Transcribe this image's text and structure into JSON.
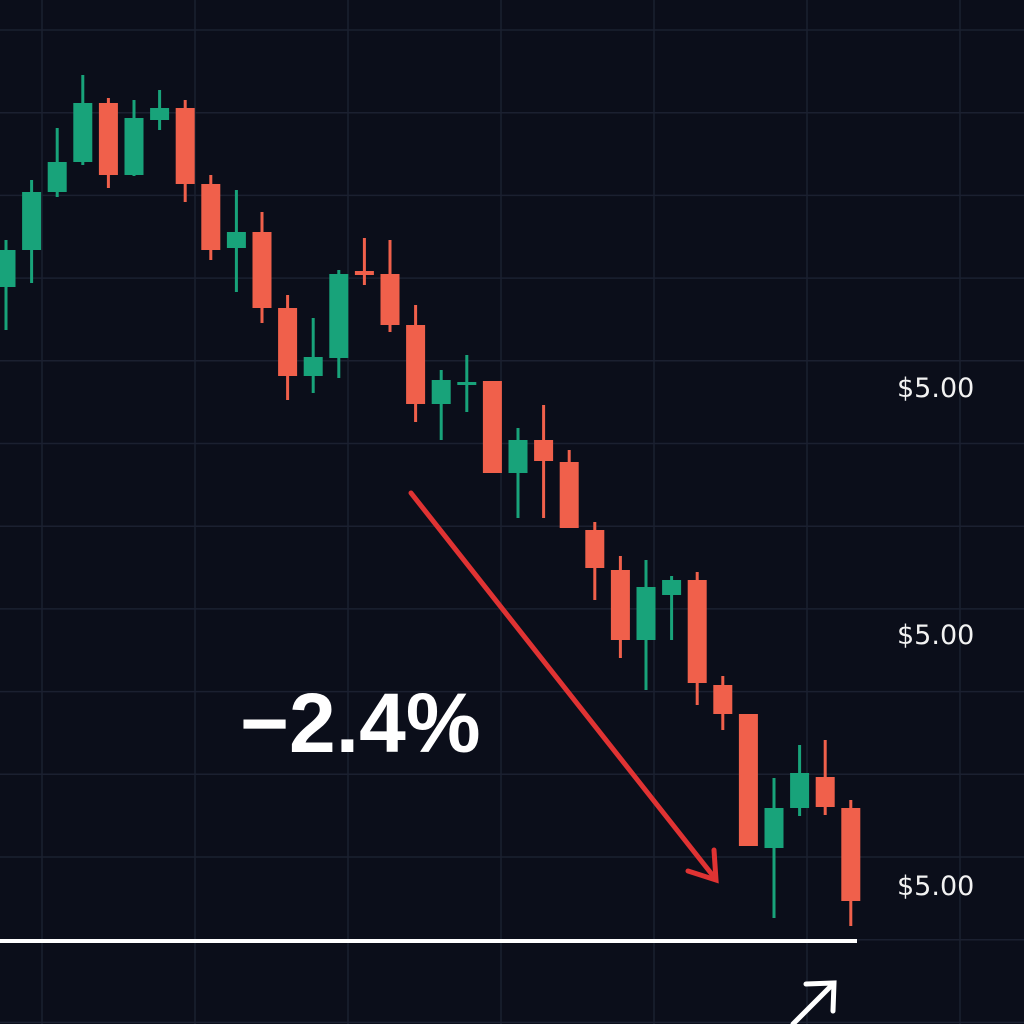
{
  "chart_data": {
    "type": "candlestick",
    "annotation": "−2.4%",
    "price_labels": [
      "$5.00",
      "$5.00",
      "$5.00"
    ],
    "up_color": "#18a37a",
    "down_color": "#f0604b",
    "ylim": [
      0,
      1024
    ],
    "open": [
      737,
      774,
      832,
      862,
      921,
      849,
      904,
      916,
      840,
      776,
      792,
      716,
      648,
      666,
      753,
      750,
      699,
      620,
      639,
      643,
      551,
      584,
      562,
      494,
      454,
      384,
      429,
      444,
      339,
      310,
      176,
      216,
      247,
      216
    ],
    "high": [
      784,
      844,
      896,
      949,
      926,
      924,
      934,
      924,
      849,
      834,
      812,
      729,
      706,
      754,
      786,
      784,
      719,
      654,
      669,
      643,
      596,
      619,
      574,
      502,
      468,
      464,
      448,
      452,
      348,
      310,
      246,
      279,
      284,
      224
    ],
    "low": [
      694,
      741,
      827,
      859,
      836,
      848,
      894,
      822,
      764,
      732,
      701,
      624,
      631,
      646,
      739,
      692,
      602,
      584,
      612,
      551,
      506,
      506,
      496,
      424,
      366,
      334,
      384,
      319,
      294,
      178,
      106,
      208,
      209,
      98
    ],
    "close": [
      774,
      832,
      862,
      921,
      849,
      906,
      916,
      840,
      774,
      792,
      716,
      648,
      667,
      750,
      749,
      699,
      620,
      644,
      642,
      551,
      584,
      563,
      496,
      456,
      384,
      437,
      444,
      341,
      310,
      178,
      216,
      251,
      217,
      123
    ]
  }
}
